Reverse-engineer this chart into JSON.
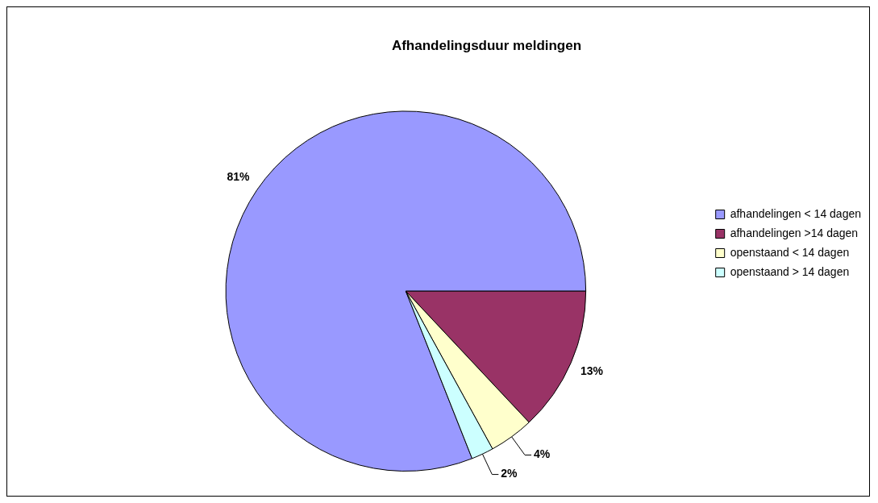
{
  "chart_data": {
    "type": "pie",
    "title": "Afhandelingsduur meldingen",
    "categories": [
      "afhandelingen < 14 dagen",
      "afhandelingen >14 dagen",
      "openstaand < 14 dagen",
      "openstaand > 14 dagen"
    ],
    "values": [
      81,
      13,
      4,
      2
    ],
    "colors": [
      "#9999ff",
      "#993366",
      "#ffffcc",
      "#ccffff"
    ],
    "value_labels": [
      "81%",
      "13%",
      "4%",
      "2%"
    ],
    "legend": "right"
  }
}
